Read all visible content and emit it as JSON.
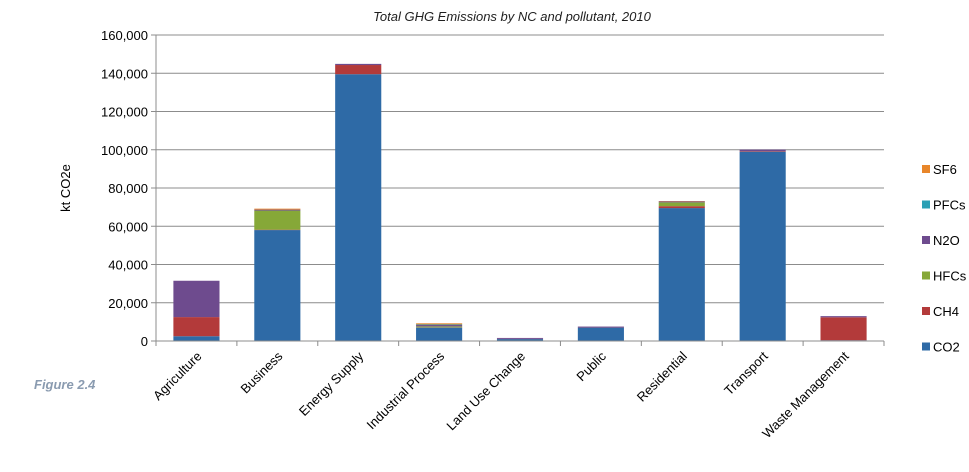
{
  "figure_label": "Figure 2.4",
  "chart_data": {
    "type": "bar",
    "stacked": true,
    "title": "Total GHG Emissions by NC and pollutant, 2010",
    "xlabel": "",
    "ylabel": "kt CO2e",
    "ylim": [
      0,
      160000
    ],
    "yticks": [
      0,
      20000,
      40000,
      60000,
      80000,
      100000,
      120000,
      140000,
      160000
    ],
    "ytick_labels": [
      "0",
      "20,000",
      "40,000",
      "60,000",
      "80,000",
      "100,000",
      "120,000",
      "140,000",
      "160,000"
    ],
    "grid": true,
    "legend_position": "right",
    "categories": [
      "Agriculture",
      "Business",
      "Energy Supply",
      "Industrial Process",
      "Land Use Change",
      "Public",
      "Residential",
      "Transport",
      "Waste Management"
    ],
    "series": [
      {
        "name": "CO2",
        "color": "#2e6aa6",
        "values": [
          2500,
          58000,
          139500,
          7000,
          1000,
          7000,
          69500,
          99000,
          400
        ]
      },
      {
        "name": "CH4",
        "color": "#b33a3a",
        "values": [
          10000,
          200,
          4800,
          150,
          100,
          50,
          1000,
          300,
          12000
        ]
      },
      {
        "name": "HFCs",
        "color": "#86a838",
        "values": [
          0,
          10000,
          0,
          500,
          0,
          0,
          2000,
          0,
          0
        ]
      },
      {
        "name": "N2O",
        "color": "#6e4b8e",
        "values": [
          19000,
          500,
          600,
          700,
          500,
          500,
          500,
          800,
          600
        ]
      },
      {
        "name": "PFCs",
        "color": "#2aa0b5",
        "values": [
          0,
          0,
          0,
          300,
          0,
          0,
          0,
          0,
          0
        ]
      },
      {
        "name": "SF6",
        "color": "#e8862a",
        "values": [
          0,
          500,
          0,
          600,
          0,
          0,
          200,
          0,
          0
        ]
      }
    ],
    "legend_order": [
      "SF6",
      "PFCs",
      "N2O",
      "HFCs",
      "CH4",
      "CO2"
    ],
    "legend_labels": [
      "SF6",
      "PFCs",
      "N2O",
      "HFCs",
      "CH4",
      "CO2"
    ]
  }
}
